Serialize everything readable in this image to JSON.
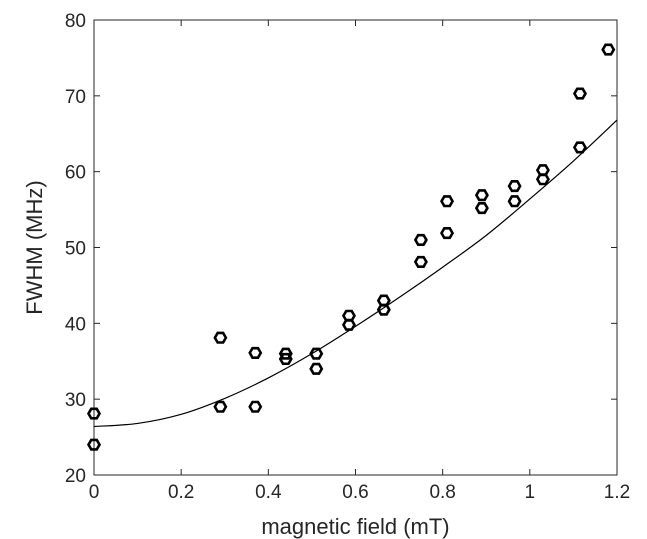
{
  "chart_data": {
    "type": "scatter",
    "xlabel": "magnetic field (mT)",
    "ylabel": "FWHM (MHz)",
    "xlim": [
      0,
      1.2
    ],
    "ylim": [
      20,
      80
    ],
    "x_ticks": [
      0,
      0.2,
      0.4,
      0.6,
      0.8,
      1.0,
      1.2
    ],
    "x_tick_labels": [
      "0",
      "0.2",
      "0.4",
      "0.6",
      "0.8",
      "1",
      "1.2"
    ],
    "y_ticks": [
      20,
      30,
      40,
      50,
      60,
      70,
      80
    ],
    "y_tick_labels": [
      "20",
      "30",
      "40",
      "50",
      "60",
      "70",
      "80"
    ],
    "grid": false,
    "points": [
      {
        "x": 0.0,
        "y": 28.1
      },
      {
        "x": 0.0,
        "y": 24.0
      },
      {
        "x": 0.29,
        "y": 38.1
      },
      {
        "x": 0.29,
        "y": 29.0
      },
      {
        "x": 0.37,
        "y": 36.1
      },
      {
        "x": 0.37,
        "y": 29.0
      },
      {
        "x": 0.44,
        "y": 36.0
      },
      {
        "x": 0.44,
        "y": 35.3
      },
      {
        "x": 0.51,
        "y": 36.0
      },
      {
        "x": 0.51,
        "y": 34.0
      },
      {
        "x": 0.585,
        "y": 41.0
      },
      {
        "x": 0.585,
        "y": 39.8
      },
      {
        "x": 0.665,
        "y": 43.0
      },
      {
        "x": 0.665,
        "y": 41.8
      },
      {
        "x": 0.75,
        "y": 51.0
      },
      {
        "x": 0.75,
        "y": 48.1
      },
      {
        "x": 0.81,
        "y": 56.1
      },
      {
        "x": 0.81,
        "y": 51.9
      },
      {
        "x": 0.89,
        "y": 56.9
      },
      {
        "x": 0.89,
        "y": 55.2
      },
      {
        "x": 0.965,
        "y": 58.1
      },
      {
        "x": 0.965,
        "y": 56.1
      },
      {
        "x": 1.03,
        "y": 60.2
      },
      {
        "x": 1.03,
        "y": 59.0
      },
      {
        "x": 1.115,
        "y": 70.3
      },
      {
        "x": 1.115,
        "y": 63.2
      },
      {
        "x": 1.18,
        "y": 76.1
      }
    ],
    "fit_curve": [
      {
        "x": 0.0,
        "y": 26.4
      },
      {
        "x": 0.1,
        "y": 26.8
      },
      {
        "x": 0.2,
        "y": 28.0
      },
      {
        "x": 0.3,
        "y": 30.1
      },
      {
        "x": 0.4,
        "y": 32.8
      },
      {
        "x": 0.5,
        "y": 36.0
      },
      {
        "x": 0.6,
        "y": 39.6
      },
      {
        "x": 0.7,
        "y": 43.4
      },
      {
        "x": 0.8,
        "y": 47.4
      },
      {
        "x": 0.9,
        "y": 51.6
      },
      {
        "x": 1.0,
        "y": 56.4
      },
      {
        "x": 1.1,
        "y": 61.4
      },
      {
        "x": 1.2,
        "y": 66.8
      }
    ]
  }
}
